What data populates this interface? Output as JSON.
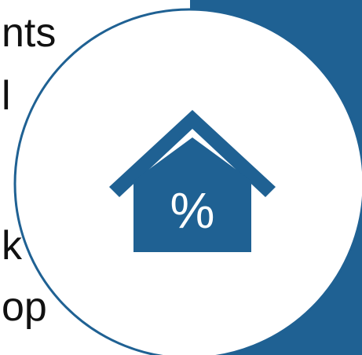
{
  "text_fragments": [
    "nts",
    "l",
    "k",
    "op"
  ],
  "icon": {
    "name": "house-percent-icon",
    "glyph": "%"
  },
  "colors": {
    "accent": "#1f6193",
    "circle_fill": "#ffffff",
    "text": "#111111"
  }
}
